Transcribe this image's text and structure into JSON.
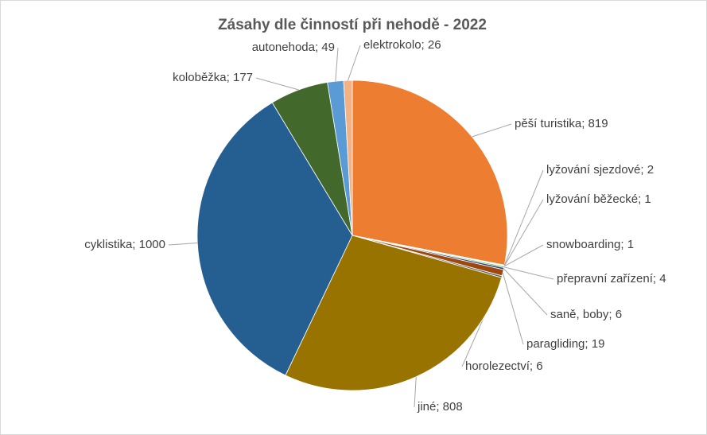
{
  "chart_data": {
    "type": "pie",
    "title": "Zásahy dle činností při nehodě - 2022",
    "values": [
      819,
      2,
      1,
      1,
      4,
      6,
      19,
      6,
      808,
      1000,
      177,
      49,
      26
    ],
    "value_labels": [
      "pěší turistika; 819",
      "lyžování sjezdové; 2",
      "lyžování běžecké; 1",
      "snowboarding; 1",
      "přepravní zařízení; 4",
      "saně, boby; 6",
      "paragliding; 19",
      "horolezectví; 6",
      "jiné; 808",
      "cyklistika; 1000",
      "koloběžka; 177",
      "autonehoda; 49",
      "elektrokolo; 26"
    ],
    "colors": [
      "#ed7d31",
      "#a5a5a5",
      "#ffc000",
      "#5b9bd5",
      "#70ad47",
      "#264478",
      "#9e480e",
      "#636363",
      "#997300",
      "#255e91",
      "#43682b",
      "#5b9bd5",
      "#f4b183"
    ]
  }
}
